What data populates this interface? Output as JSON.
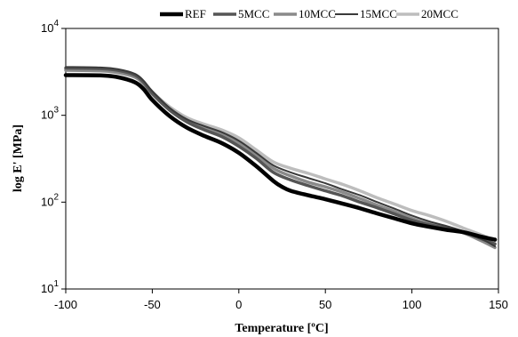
{
  "chart_data": {
    "type": "line",
    "title": "",
    "xlabel": "Temperature  [ºC]",
    "ylabel": "log E' [MPa]",
    "xlim": [
      -100,
      150
    ],
    "ylim": [
      10,
      10000
    ],
    "y_scale": "log",
    "x_ticks": [
      -100,
      -50,
      0,
      50,
      100,
      150
    ],
    "x_tick_labels": [
      "-100",
      "-50",
      "0",
      "50",
      "100",
      "150"
    ],
    "y_ticks": [
      10,
      100,
      1000,
      10000
    ],
    "y_tick_labels": [
      {
        "base": "10",
        "exp": "1"
      },
      {
        "base": "10",
        "exp": "2"
      },
      {
        "base": "10",
        "exp": "3"
      },
      {
        "base": "10",
        "exp": "4"
      }
    ],
    "grid": false,
    "legend_position": "top",
    "series": [
      {
        "name": "REF",
        "color": "#000000",
        "width": 4.5,
        "x": [
          -100,
          -80,
          -70,
          -60,
          -55,
          -50,
          -40,
          -30,
          -20,
          -10,
          0,
          10,
          20,
          25,
          30,
          40,
          50,
          60,
          70,
          80,
          90,
          100,
          110,
          120,
          130,
          140,
          148
        ],
        "y": [
          2900,
          2880,
          2750,
          2400,
          2000,
          1500,
          980,
          720,
          580,
          480,
          370,
          260,
          175,
          150,
          135,
          120,
          108,
          96,
          85,
          74,
          65,
          57,
          52,
          48,
          45,
          40,
          37
        ]
      },
      {
        "name": "5MCC",
        "color": "#555555",
        "width": 3.5,
        "x": [
          -100,
          -80,
          -70,
          -60,
          -55,
          -50,
          -40,
          -30,
          -20,
          -10,
          0,
          10,
          20,
          30,
          40,
          50,
          60,
          70,
          80,
          90,
          100,
          110,
          120,
          130,
          140,
          148
        ],
        "y": [
          3500,
          3450,
          3300,
          2900,
          2400,
          1800,
          1150,
          840,
          680,
          570,
          440,
          320,
          220,
          180,
          155,
          135,
          118,
          100,
          86,
          73,
          62,
          55,
          50,
          45,
          38,
          33
        ]
      },
      {
        "name": "10MCC",
        "color": "#8a8a8a",
        "width": 3.5,
        "x": [
          -100,
          -80,
          -70,
          -60,
          -55,
          -50,
          -40,
          -30,
          -20,
          -10,
          0,
          10,
          20,
          30,
          40,
          50,
          60,
          70,
          80,
          90,
          100,
          110,
          120,
          130,
          140,
          148
        ],
        "y": [
          3300,
          3250,
          3100,
          2750,
          2300,
          1750,
          1150,
          860,
          720,
          610,
          480,
          350,
          245,
          200,
          170,
          150,
          130,
          110,
          92,
          78,
          65,
          56,
          50,
          44,
          36,
          30
        ]
      },
      {
        "name": "15MCC",
        "color": "#3a3a3a",
        "width": 2,
        "x": [
          -100,
          -80,
          -70,
          -60,
          -55,
          -50,
          -40,
          -30,
          -20,
          -10,
          0,
          10,
          20,
          30,
          40,
          50,
          60,
          70,
          80,
          90,
          100,
          110,
          120,
          130,
          140,
          148
        ],
        "y": [
          3600,
          3550,
          3400,
          3000,
          2500,
          1900,
          1220,
          900,
          750,
          640,
          510,
          370,
          265,
          220,
          190,
          165,
          140,
          120,
          100,
          84,
          70,
          60,
          53,
          46,
          38,
          31
        ]
      },
      {
        "name": "20MCC",
        "color": "#bdbdbd",
        "width": 3.5,
        "x": [
          -100,
          -80,
          -70,
          -60,
          -55,
          -50,
          -40,
          -30,
          -20,
          -10,
          0,
          10,
          20,
          30,
          40,
          50,
          60,
          70,
          80,
          90,
          100,
          110,
          120,
          130,
          140,
          148
        ],
        "y": [
          3400,
          3350,
          3200,
          2850,
          2400,
          1850,
          1250,
          940,
          790,
          680,
          550,
          400,
          290,
          245,
          215,
          185,
          160,
          135,
          112,
          95,
          80,
          70,
          60,
          50,
          42,
          36
        ]
      }
    ]
  }
}
